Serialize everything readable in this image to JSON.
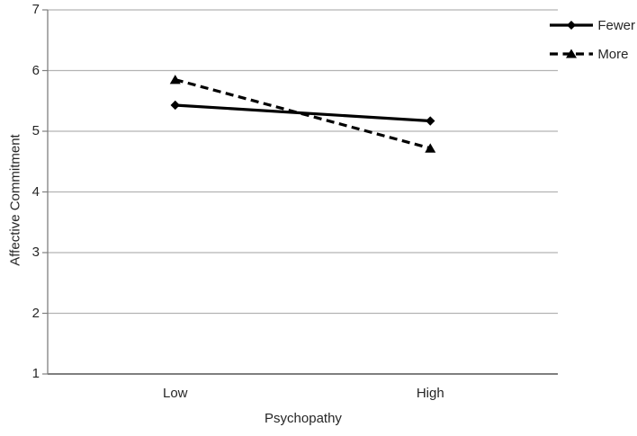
{
  "chart_data": {
    "type": "line",
    "title": "",
    "xlabel": "Psychopathy",
    "ylabel": "Affective Commitment",
    "categories": [
      "Low",
      "High"
    ],
    "series": [
      {
        "name": "Fewer",
        "values": [
          5.43,
          5.17
        ],
        "line_style": "solid",
        "marker": "diamond"
      },
      {
        "name": "More",
        "values": [
          5.85,
          4.72
        ],
        "line_style": "dashed",
        "marker": "triangle"
      }
    ],
    "ylim": [
      1,
      7
    ],
    "yticks": [
      1,
      2,
      3,
      4,
      5,
      6,
      7
    ],
    "grid": "horizontal",
    "legend_position": "top-right",
    "colors": {
      "series": "#000000",
      "gridline": "#b3b3b3",
      "axis": "#7f7f7f",
      "text": "#262626",
      "background": "#ffffff"
    }
  }
}
